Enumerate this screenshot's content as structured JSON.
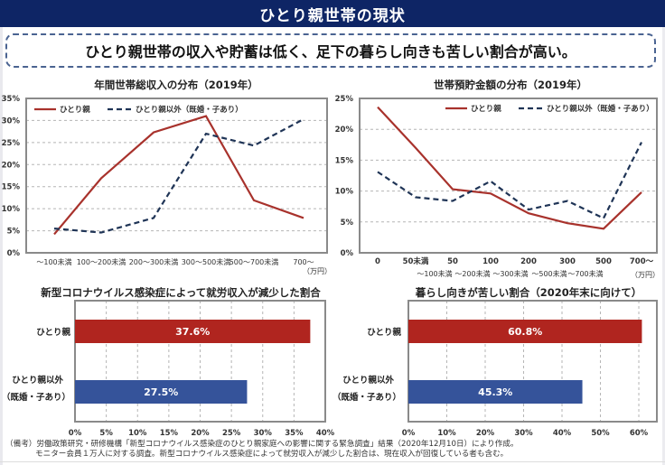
{
  "header": {
    "title": "ひとり親世帯の現状"
  },
  "summary": {
    "text": "ひとり親世帯の収入や貯蓄は低く、足下の暮らし向きも苦しい割合が高い。"
  },
  "colors": {
    "header_bg": "#0e2565",
    "single_parent": "#a8322c",
    "others": "#1f3456",
    "bar_single_parent": "#b0251f",
    "bar_others": "#35539a"
  },
  "chart_data": [
    {
      "id": "income",
      "type": "line",
      "title": "年間世帯総収入の分布（2019年）",
      "xlabel": "",
      "ylabel": "",
      "unit_label": "（万円）",
      "categories": [
        "～100未満",
        "100～200未満",
        "200～300未満",
        "300～500未満",
        "500～700未満",
        "700～"
      ],
      "ylim": [
        0,
        35
      ],
      "yticks": [
        0,
        5,
        10,
        15,
        20,
        25,
        30,
        35
      ],
      "ytick_labels": [
        "0%",
        "5%",
        "10%",
        "15%",
        "20%",
        "25%",
        "30%",
        "35%"
      ],
      "grid": true,
      "legend_position": "top-left",
      "series": [
        {
          "name": "ひとり親",
          "style": "solid",
          "values": [
            4.2,
            16.9,
            27.3,
            31.0,
            11.9,
            7.9
          ]
        },
        {
          "name": "ひとり親以外（既婚・子あり）",
          "style": "dashed",
          "values": [
            5.5,
            4.6,
            7.9,
            27.0,
            24.3,
            30.3
          ]
        }
      ]
    },
    {
      "id": "savings",
      "type": "line",
      "title": "世帯預貯金額の分布（2019年）",
      "xlabel": "",
      "ylabel": "",
      "unit_label": "（万円）",
      "categories": [
        "0",
        "50未満",
        "50\n～100未満",
        "100\n～200未満",
        "200\n～300未満",
        "300\n～500未満",
        "500\n～700未満",
        "700～"
      ],
      "category_lines": [
        [
          "0"
        ],
        [
          "50未満"
        ],
        [
          "50",
          "～100未満"
        ],
        [
          "100",
          "～200未満"
        ],
        [
          "200",
          "～300未満"
        ],
        [
          "300",
          "～500未満"
        ],
        [
          "500",
          "～700未満"
        ],
        [
          "700～"
        ]
      ],
      "ylim": [
        0,
        25
      ],
      "yticks": [
        0,
        5,
        10,
        15,
        20,
        25
      ],
      "ytick_labels": [
        "0%",
        "5%",
        "10%",
        "15%",
        "20%",
        "25%"
      ],
      "grid": true,
      "legend_position": "top-right",
      "series": [
        {
          "name": "ひとり親",
          "style": "solid",
          "values": [
            23.6,
            17.0,
            10.3,
            9.6,
            6.4,
            4.8,
            3.9,
            9.8
          ]
        },
        {
          "name": "ひとり親以外（既婚・子あり）",
          "style": "dashed",
          "values": [
            13.1,
            9.0,
            8.4,
            11.6,
            7.0,
            8.4,
            5.6,
            17.9
          ]
        }
      ]
    },
    {
      "id": "covid_income",
      "type": "bar",
      "orientation": "horizontal",
      "title": "新型コロナウイルス感染症によって就労収入が減少した割合",
      "categories": [
        [
          "ひとり親"
        ],
        [
          "ひとり親以外",
          "（既婚・子あり）"
        ]
      ],
      "values": [
        37.6,
        27.5
      ],
      "value_labels": [
        "37.6%",
        "27.5%"
      ],
      "xlim": [
        0,
        40
      ],
      "xticks": [
        0,
        5,
        10,
        15,
        20,
        25,
        30,
        35,
        40
      ],
      "xtick_labels": [
        "0%",
        "5%",
        "10%",
        "15%",
        "20%",
        "25%",
        "30%",
        "35%",
        "40%"
      ],
      "grid": true
    },
    {
      "id": "living_hardship",
      "type": "bar",
      "orientation": "horizontal",
      "title": "暮らし向きが苦しい割合（2020年末に向けて）",
      "categories": [
        [
          "ひとり親"
        ],
        [
          "ひとり親以外",
          "（既婚・子あり）"
        ]
      ],
      "values": [
        60.8,
        45.3
      ],
      "value_labels": [
        "60.8%",
        "45.3%"
      ],
      "xlim": [
        0,
        64.7
      ],
      "xticks": [
        0,
        10,
        20,
        30,
        40,
        50,
        60
      ],
      "xtick_labels": [
        "0%",
        "10%",
        "20%",
        "30%",
        "40%",
        "50%",
        "60%"
      ],
      "grid": true
    }
  ],
  "footnote": {
    "line1": "（備考）労働政策研究・研修機構「新型コロナウイルス感染症のひとり親家庭への影響に関する緊急調査」結果（2020年12月10日）により作成。",
    "line2": "モニター会員１万人に対する調査。新型コロナウイルス感染症によって就労収入が減少した割合は、現在収入が回復している者も含む。"
  }
}
